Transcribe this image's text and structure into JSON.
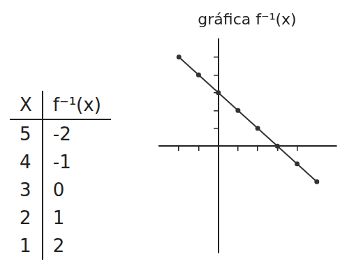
{
  "table": {
    "header": [
      "X",
      "f⁻¹(x)"
    ],
    "rows": [
      [
        5,
        -2
      ],
      [
        4,
        -1
      ],
      [
        3,
        0
      ],
      [
        2,
        1
      ],
      [
        1,
        2
      ]
    ]
  },
  "chart_data": {
    "type": "line",
    "title": "gráfica f⁻¹(x)",
    "x": [
      -2,
      -1,
      0,
      1,
      2,
      3,
      4,
      5
    ],
    "values": [
      5,
      4,
      3,
      2,
      1,
      0,
      -1,
      -2
    ],
    "color": "#333333",
    "marker": "circle",
    "line_style": "solid",
    "xlim": [
      -3,
      6
    ],
    "ylim": [
      -6,
      6
    ],
    "xticks": [
      -2,
      -1,
      1,
      2,
      3,
      4
    ],
    "yticks": [
      1,
      2,
      3,
      4,
      5
    ],
    "grid": false,
    "tick_labels": false
  }
}
